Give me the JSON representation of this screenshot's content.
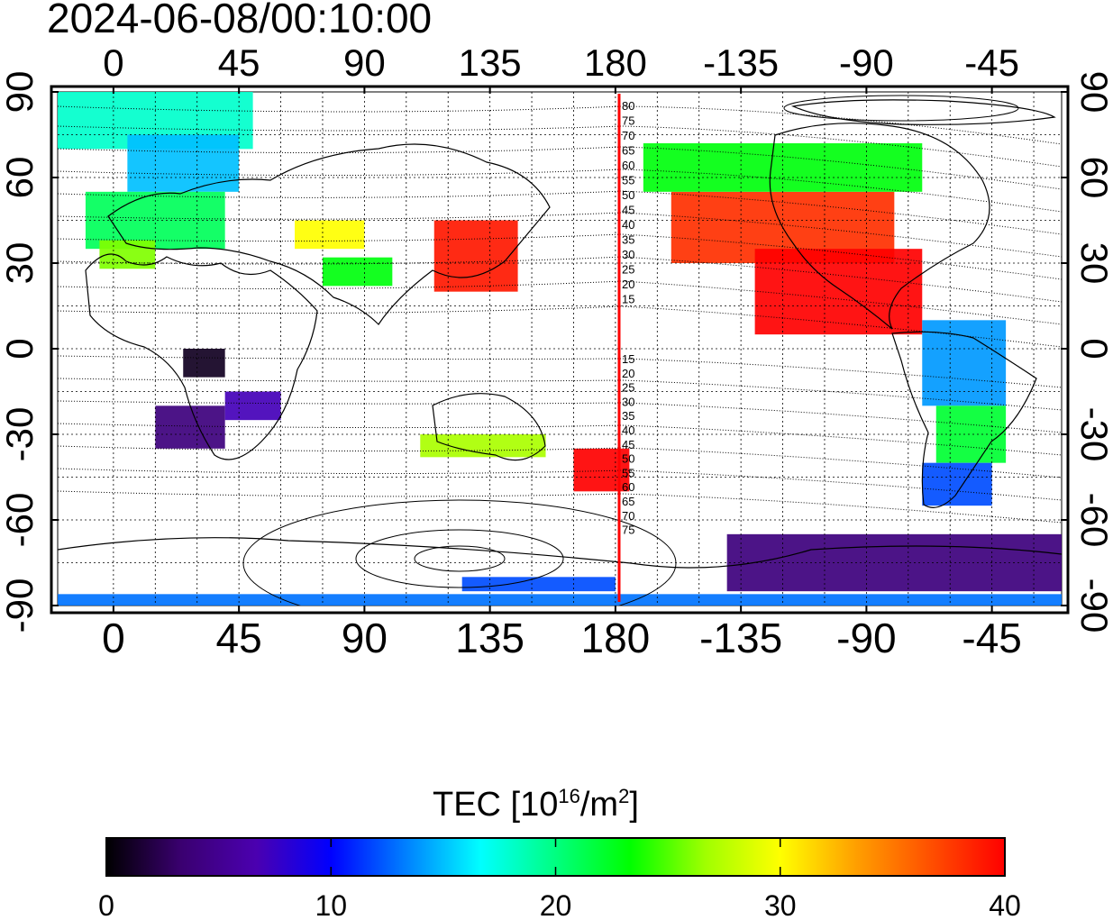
{
  "timestamp": "2024-06-08/00:10:00",
  "colors": {
    "terminator_line": "#ff0000",
    "grid": "#000000"
  },
  "axes": {
    "top_lon_ticks": [
      "0",
      "45",
      "90",
      "135",
      "180",
      "-135",
      "-90",
      "-45"
    ],
    "bottom_lon_ticks": [
      "0",
      "45",
      "90",
      "135",
      "180",
      "-135",
      "-90",
      "-45"
    ],
    "left_lat_ticks": [
      "90",
      "60",
      "30",
      "0",
      "-30",
      "-60",
      "-90"
    ],
    "right_lat_ticks": [
      "90",
      "60",
      "30",
      "0",
      "-30",
      "-60",
      "-90"
    ]
  },
  "contour_labels_upper": [
    "80",
    "75",
    "70",
    "65",
    "60",
    "55",
    "50",
    "45",
    "40",
    "35",
    "30",
    "25",
    "20",
    "15"
  ],
  "contour_labels_lower": [
    "15",
    "20",
    "25",
    "30",
    "35",
    "40",
    "45",
    "50",
    "55",
    "60",
    "65",
    "70",
    "75"
  ],
  "colorbar": {
    "title_main": "TEC  [10",
    "title_sup1": "16",
    "title_mid": "/m",
    "title_sup2": "2",
    "title_end": "]",
    "min": 0,
    "max": 40,
    "tick_labels": [
      "0",
      "10",
      "20",
      "30",
      "40"
    ],
    "stops": [
      "#000000",
      "#3a0070",
      "#4b00b0",
      "#0000ff",
      "#0080ff",
      "#00ffff",
      "#00ff80",
      "#00ff00",
      "#a0ff00",
      "#ffff00",
      "#ffa000",
      "#ff5000",
      "#ff0000"
    ]
  },
  "chart_data": {
    "type": "heatmap",
    "title": "2024-06-08/00:10:00",
    "xlabel": "",
    "ylabel": "",
    "xlim": [
      -20,
      340
    ],
    "ylim": [
      -90,
      90
    ],
    "legend": "bottom",
    "regions": [
      {
        "lon": [
          -20,
          50
        ],
        "lat": [
          70,
          90
        ],
        "value": 18
      },
      {
        "lon": [
          5,
          45
        ],
        "lat": [
          55,
          75
        ],
        "value": 15
      },
      {
        "lon": [
          -10,
          40
        ],
        "lat": [
          35,
          55
        ],
        "value": 21
      },
      {
        "lon": [
          -5,
          15
        ],
        "lat": [
          28,
          38
        ],
        "value": 26
      },
      {
        "lon": [
          65,
          90
        ],
        "lat": [
          35,
          45
        ],
        "value": 30
      },
      {
        "lon": [
          75,
          100
        ],
        "lat": [
          22,
          32
        ],
        "value": 23
      },
      {
        "lon": [
          115,
          145
        ],
        "lat": [
          20,
          45
        ],
        "value": 39
      },
      {
        "lon": [
          200,
          280
        ],
        "lat": [
          30,
          55
        ],
        "value": 38
      },
      {
        "lon": [
          230,
          290
        ],
        "lat": [
          5,
          35
        ],
        "value": 40
      },
      {
        "lon": [
          190,
          290
        ],
        "lat": [
          55,
          72
        ],
        "value": 23
      },
      {
        "lon": [
          290,
          320
        ],
        "lat": [
          -20,
          10
        ],
        "value": 14
      },
      {
        "lon": [
          295,
          320
        ],
        "lat": [
          -40,
          -20
        ],
        "value": 22
      },
      {
        "lon": [
          290,
          315
        ],
        "lat": [
          -55,
          -40
        ],
        "value": 12
      },
      {
        "lon": [
          25,
          40
        ],
        "lat": [
          -10,
          0
        ],
        "value": 1
      },
      {
        "lon": [
          15,
          40
        ],
        "lat": [
          -35,
          -20
        ],
        "value": 4
      },
      {
        "lon": [
          40,
          60
        ],
        "lat": [
          -25,
          -15
        ],
        "value": 7
      },
      {
        "lon": [
          165,
          185
        ],
        "lat": [
          -50,
          -35
        ],
        "value": 40
      },
      {
        "lon": [
          110,
          155
        ],
        "lat": [
          -38,
          -30
        ],
        "value": 27
      },
      {
        "lon": [
          125,
          180
        ],
        "lat": [
          -85,
          -80
        ],
        "value": 12
      },
      {
        "lon": [
          220,
          340
        ],
        "lat": [
          -85,
          -65
        ],
        "value": 4
      },
      {
        "lon": [
          -20,
          340
        ],
        "lat": [
          -90,
          -86
        ],
        "value": 13
      }
    ]
  }
}
